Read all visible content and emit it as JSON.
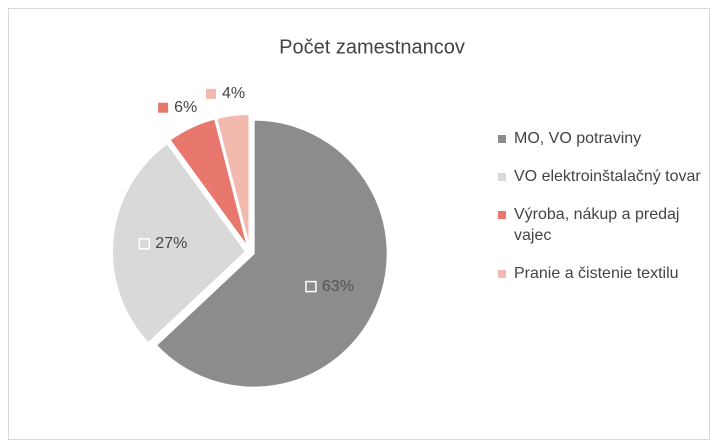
{
  "chart_data": {
    "type": "pie",
    "title": "Počet zamestnancov",
    "categories": [
      "MO, VO potraviny",
      "VO elektroinštalačný tovar",
      "Výroba, nákup a predaj vajec",
      "Pranie a čistenie textilu"
    ],
    "values": [
      63,
      27,
      6,
      4
    ],
    "value_labels": [
      "63%",
      "27%",
      "6%",
      "4%"
    ],
    "colors": [
      "#8c8c8c",
      "#d9d9d9",
      "#e8776e",
      "#f4b9ae"
    ],
    "legend": "right"
  }
}
